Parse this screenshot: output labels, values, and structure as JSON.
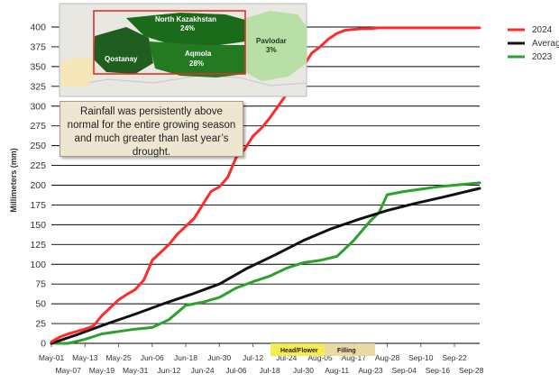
{
  "chart_data": {
    "type": "line",
    "title": "",
    "xlabel": "",
    "ylabel": "Millimeters (mm)",
    "ylim": [
      0,
      400
    ],
    "yticks": [
      0,
      25,
      50,
      75,
      100,
      125,
      150,
      175,
      200,
      225,
      250,
      275,
      300,
      325,
      350,
      375,
      400
    ],
    "x_tick_labels_upper": [
      "May-01",
      "May-13",
      "May-25",
      "Jun-06",
      "Jun-18",
      "Jun-30",
      "Jul-12",
      "Jul-24",
      "Aug-05",
      "Aug-17",
      "Aug-28",
      "Sep-10",
      "Sep-22"
    ],
    "x_tick_labels_lower": [
      "May-07",
      "May-19",
      "May-31",
      "Jun-12",
      "Jun-24",
      "Jul-06",
      "Jul-18",
      "Jul-30",
      "Aug-11",
      "Aug-23",
      "Sep-04",
      "Sep-16",
      "Sep-28"
    ],
    "x_range_days": [
      0,
      153
    ],
    "grid": "horizontal",
    "legend_placement": "right",
    "series": [
      {
        "name": "2024",
        "color": "#ff2a2a",
        "x": [
          0,
          3,
          6,
          9,
          12,
          15,
          18,
          21,
          24,
          27,
          30,
          33,
          36,
          39,
          42,
          45,
          48,
          51,
          54,
          57,
          60,
          63,
          66,
          69,
          72,
          75,
          78,
          81,
          84,
          87,
          90,
          93,
          96,
          99,
          102,
          105,
          108,
          111,
          114,
          117,
          120,
          124,
          128,
          132,
          136,
          140,
          144,
          148,
          153
        ],
        "y": [
          2,
          8,
          12,
          15,
          18,
          22,
          35,
          45,
          55,
          62,
          68,
          80,
          105,
          115,
          125,
          138,
          148,
          158,
          175,
          192,
          198,
          210,
          235,
          245,
          262,
          272,
          285,
          300,
          315,
          335,
          350,
          367,
          375,
          385,
          392,
          396,
          397,
          398,
          398,
          399,
          399,
          399,
          399,
          399,
          399,
          399,
          399,
          399,
          399
        ]
      },
      {
        "name": "Average",
        "color": "#111111",
        "x": [
          0,
          10,
          20,
          30,
          40,
          50,
          60,
          70,
          80,
          90,
          100,
          110,
          120,
          130,
          140,
          153
        ],
        "y": [
          0,
          12,
          25,
          37,
          50,
          62,
          75,
          95,
          112,
          130,
          145,
          157,
          168,
          177,
          185,
          196
        ]
      },
      {
        "name": "2023",
        "color": "#2ea02e",
        "x": [
          0,
          6,
          12,
          18,
          24,
          30,
          36,
          42,
          48,
          54,
          60,
          66,
          72,
          78,
          84,
          90,
          96,
          102,
          108,
          114,
          117,
          120,
          126,
          132,
          138,
          144,
          150,
          153
        ],
        "y": [
          0,
          0,
          5,
          12,
          15,
          18,
          20,
          30,
          48,
          52,
          58,
          70,
          78,
          85,
          95,
          102,
          105,
          110,
          130,
          155,
          165,
          188,
          192,
          195,
          198,
          200,
          202,
          203
        ]
      }
    ],
    "annotations": {
      "note": "Rainfall was persistently above normal for the entire growing season and much greater than last year’s drought.",
      "stage_head_flower": "Head/Flower",
      "stage_filling": "Filling"
    }
  },
  "map": {
    "regions": [
      "North Kazakhstan",
      "24%",
      "Qostanay",
      "Aqmola",
      "28%",
      "Pavlodar",
      "3%"
    ]
  }
}
